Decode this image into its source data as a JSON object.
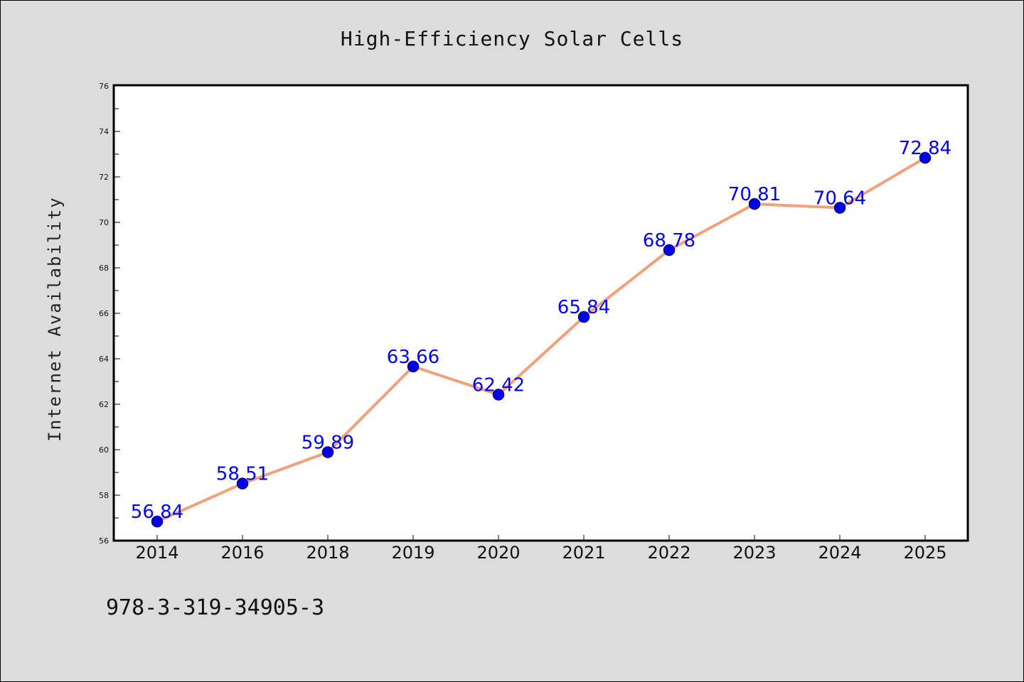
{
  "chart_data": {
    "type": "line",
    "title": "High-Efficiency Solar Cells",
    "xlabel": "",
    "ylabel": "Internet Availability",
    "categories": [
      "2014",
      "2016",
      "2018",
      "2019",
      "2020",
      "2021",
      "2022",
      "2023",
      "2024",
      "2025"
    ],
    "series": [
      {
        "values": [
          56.84,
          58.51,
          59.89,
          63.66,
          62.42,
          65.84,
          68.78,
          70.81,
          70.64,
          72.84
        ]
      }
    ],
    "data_labels": [
      "56.84",
      "58.51",
      "59.89",
      "63.66",
      "62.42",
      "65.84",
      "68.78",
      "70.81",
      "70.64",
      "72.84"
    ],
    "ylim": [
      56,
      76
    ],
    "yticks": [
      "56",
      "58",
      "60",
      "62",
      "64",
      "66",
      "68",
      "70",
      "72",
      "74",
      "76"
    ],
    "grid": false,
    "legend": "none",
    "colors": {
      "line": "#f4a07a",
      "marker": "#0000ee",
      "marker_edge": "#000080",
      "data_label": "#0000ff",
      "background": "#dcdcdc",
      "plot_bg": "#ffffff"
    }
  },
  "footer_text": "978-3-319-34905-3"
}
